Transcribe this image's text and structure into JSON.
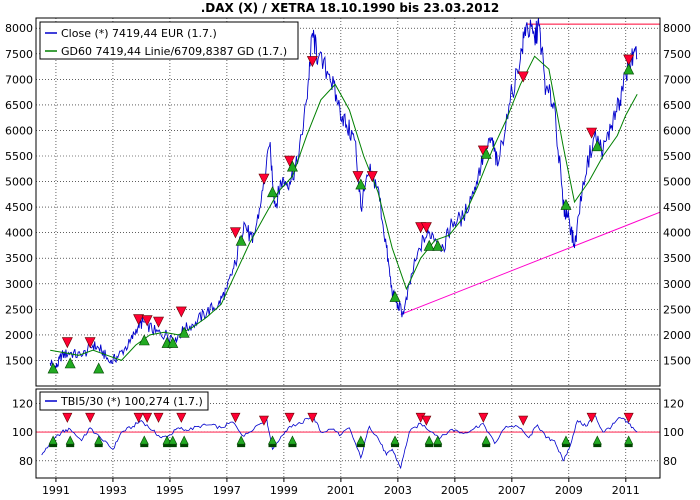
{
  "chart_data": [
    {
      "type": "line",
      "title": ".DAX (X) / XETRA 18.10.1990 bis 23.03.2012",
      "ylim": [
        1000,
        8200
      ],
      "y_ticks": [
        1500,
        2000,
        2500,
        3000,
        3500,
        4000,
        4500,
        5000,
        5500,
        6000,
        6500,
        7000,
        7500,
        8000
      ],
      "y_tick_labels": [
        "1500",
        "2000",
        "2500",
        "3000",
        "3500",
        "4000",
        "4500",
        "5000",
        "5500",
        "6000",
        "6500",
        "7000",
        "7500",
        "8000"
      ],
      "x_ticks": [
        "1991",
        "1993",
        "1995",
        "1997",
        "1999",
        "2001",
        "2003",
        "2005",
        "2007",
        "2009",
        "2011"
      ],
      "grid": true,
      "legend_position": "top-left",
      "series": [
        {
          "name": "Close (*) 7419,44 EUR (1.7.)",
          "color": "#0000cc",
          "points": [
            [
              1990.8,
              1450
            ],
            [
              1991.0,
              1350
            ],
            [
              1991.2,
              1600
            ],
            [
              1991.5,
              1650
            ],
            [
              1991.9,
              1580
            ],
            [
              1992.3,
              1800
            ],
            [
              1992.6,
              1700
            ],
            [
              1992.9,
              1450
            ],
            [
              1993.2,
              1600
            ],
            [
              1993.6,
              1850
            ],
            [
              1993.9,
              2200
            ],
            [
              1994.1,
              2250
            ],
            [
              1994.5,
              2050
            ],
            [
              1994.9,
              2000
            ],
            [
              1995.2,
              1950
            ],
            [
              1995.5,
              2100
            ],
            [
              1995.9,
              2250
            ],
            [
              1996.3,
              2450
            ],
            [
              1996.7,
              2600
            ],
            [
              1997.0,
              2900
            ],
            [
              1997.3,
              3400
            ],
            [
              1997.6,
              4200
            ],
            [
              1997.9,
              3800
            ],
            [
              1998.2,
              4600
            ],
            [
              1998.5,
              5700
            ],
            [
              1998.7,
              4500
            ],
            [
              1998.9,
              5000
            ],
            [
              1999.2,
              5000
            ],
            [
              1999.5,
              5400
            ],
            [
              1999.8,
              6600
            ],
            [
              2000.0,
              7900
            ],
            [
              2000.2,
              7400
            ],
            [
              2000.6,
              7100
            ],
            [
              2000.9,
              6500
            ],
            [
              2001.2,
              6100
            ],
            [
              2001.5,
              5800
            ],
            [
              2001.7,
              4500
            ],
            [
              2002.0,
              5200
            ],
            [
              2002.3,
              4900
            ],
            [
              2002.6,
              3700
            ],
            [
              2002.8,
              2800
            ],
            [
              2003.0,
              2600
            ],
            [
              2003.2,
              2400
            ],
            [
              2003.5,
              3200
            ],
            [
              2003.9,
              3900
            ],
            [
              2004.2,
              4000
            ],
            [
              2004.6,
              3700
            ],
            [
              2004.9,
              4200
            ],
            [
              2005.3,
              4300
            ],
            [
              2005.7,
              4900
            ],
            [
              2006.0,
              5500
            ],
            [
              2006.3,
              5800
            ],
            [
              2006.5,
              5300
            ],
            [
              2006.9,
              6500
            ],
            [
              2007.3,
              7400
            ],
            [
              2007.5,
              8050
            ],
            [
              2007.8,
              7800
            ],
            [
              2007.95,
              8050
            ],
            [
              2008.2,
              6800
            ],
            [
              2008.5,
              6500
            ],
            [
              2008.8,
              4500
            ],
            [
              2009.0,
              4300
            ],
            [
              2009.2,
              3700
            ],
            [
              2009.5,
              5000
            ],
            [
              2009.9,
              5900
            ],
            [
              2010.2,
              5600
            ],
            [
              2010.5,
              6100
            ],
            [
              2010.8,
              6600
            ],
            [
              2011.0,
              7100
            ],
            [
              2011.2,
              7400
            ],
            [
              2011.4,
              7419
            ]
          ]
        },
        {
          "name": "GD60 7419,44 Linie/6709,8387 GD (1.7.)",
          "color": "#008000",
          "points": [
            [
              1990.8,
              1700
            ],
            [
              1991.3,
              1650
            ],
            [
              1991.8,
              1600
            ],
            [
              1992.3,
              1700
            ],
            [
              1992.8,
              1600
            ],
            [
              1993.3,
              1500
            ],
            [
              1993.8,
              1800
            ],
            [
              1994.3,
              2000
            ],
            [
              1994.8,
              2050
            ],
            [
              1995.3,
              2000
            ],
            [
              1995.8,
              2150
            ],
            [
              1996.3,
              2350
            ],
            [
              1996.8,
              2600
            ],
            [
              1997.3,
              3200
            ],
            [
              1997.8,
              3800
            ],
            [
              1998.3,
              4300
            ],
            [
              1998.8,
              4800
            ],
            [
              1999.3,
              5100
            ],
            [
              1999.8,
              5900
            ],
            [
              2000.3,
              6600
            ],
            [
              2000.8,
              6900
            ],
            [
              2001.3,
              6400
            ],
            [
              2001.8,
              5500
            ],
            [
              2002.3,
              4800
            ],
            [
              2002.8,
              3700
            ],
            [
              2003.3,
              2900
            ],
            [
              2003.8,
              3500
            ],
            [
              2004.3,
              3850
            ],
            [
              2004.8,
              3950
            ],
            [
              2005.3,
              4300
            ],
            [
              2005.8,
              4900
            ],
            [
              2006.3,
              5600
            ],
            [
              2006.8,
              6200
            ],
            [
              2007.3,
              6900
            ],
            [
              2007.8,
              7450
            ],
            [
              2008.3,
              7200
            ],
            [
              2008.8,
              5700
            ],
            [
              2009.2,
              4600
            ],
            [
              2009.7,
              5000
            ],
            [
              2010.2,
              5500
            ],
            [
              2010.7,
              5900
            ],
            [
              2011.0,
              6300
            ],
            [
              2011.4,
              6710
            ]
          ]
        }
      ],
      "reference_lines": [
        {
          "color": "#ff00cc",
          "points": [
            [
              2003.1,
              2400
            ],
            [
              2012.2,
              4400
            ]
          ]
        },
        {
          "color": "#ff0033",
          "points": [
            [
              2007.5,
              8080
            ],
            [
              2012.2,
              8080
            ]
          ]
        }
      ],
      "sell_signals": [
        [
          1991.4,
          1850
        ],
        [
          1992.2,
          1850
        ],
        [
          1993.9,
          2300
        ],
        [
          1994.2,
          2280
        ],
        [
          1994.6,
          2250
        ],
        [
          1995.4,
          2450
        ],
        [
          1997.3,
          4000
        ],
        [
          1998.3,
          5050
        ],
        [
          1999.2,
          5400
        ],
        [
          2000.0,
          7350
        ],
        [
          2001.6,
          5100
        ],
        [
          2002.1,
          5100
        ],
        [
          2003.8,
          4100
        ],
        [
          2004.0,
          4100
        ],
        [
          2006.0,
          5600
        ],
        [
          2007.4,
          7050
        ],
        [
          2009.8,
          5950
        ],
        [
          2011.1,
          7380
        ]
      ],
      "buy_signals": [
        [
          1990.9,
          1350
        ],
        [
          1991.5,
          1450
        ],
        [
          1992.5,
          1350
        ],
        [
          1994.1,
          1900
        ],
        [
          1994.9,
          1850
        ],
        [
          1995.1,
          1850
        ],
        [
          1995.5,
          2050
        ],
        [
          1997.5,
          3850
        ],
        [
          1998.6,
          4800
        ],
        [
          1999.3,
          5300
        ],
        [
          2001.7,
          4950
        ],
        [
          2002.9,
          2750
        ],
        [
          2004.1,
          3750
        ],
        [
          2004.4,
          3750
        ],
        [
          2006.1,
          5550
        ],
        [
          2008.9,
          4550
        ],
        [
          2010.0,
          5700
        ],
        [
          2011.1,
          7200
        ]
      ]
    },
    {
      "type": "line",
      "ylim": [
        68,
        130
      ],
      "y_ticks": [
        80,
        100,
        120
      ],
      "y_tick_labels": [
        "80",
        "100",
        "120"
      ],
      "legend_position": "top-left",
      "series": [
        {
          "name": "TBI5/30 (*) 100,274 (1.7.)",
          "color": "#0000cc",
          "points": [
            [
              1990.5,
              84
            ],
            [
              1990.8,
              92
            ],
            [
              1991.2,
              100
            ],
            [
              1991.5,
              102
            ],
            [
              1991.9,
              94
            ],
            [
              1992.2,
              103
            ],
            [
              1992.6,
              95
            ],
            [
              1993.0,
              88
            ],
            [
              1993.3,
              100
            ],
            [
              1993.7,
              104
            ],
            [
              1994.0,
              108
            ],
            [
              1994.4,
              101
            ],
            [
              1994.7,
              96
            ],
            [
              1995.0,
              98
            ],
            [
              1995.3,
              103
            ],
            [
              1995.6,
              101
            ],
            [
              1996.0,
              104
            ],
            [
              1996.4,
              105
            ],
            [
              1996.8,
              103
            ],
            [
              1997.2,
              107
            ],
            [
              1997.6,
              97
            ],
            [
              1998.0,
              104
            ],
            [
              1998.4,
              109
            ],
            [
              1998.6,
              88
            ],
            [
              1998.9,
              97
            ],
            [
              1999.2,
              104
            ],
            [
              1999.6,
              106
            ],
            [
              2000.0,
              112
            ],
            [
              2000.3,
              100
            ],
            [
              2000.7,
              102
            ],
            [
              2001.0,
              98
            ],
            [
              2001.3,
              103
            ],
            [
              2001.7,
              82
            ],
            [
              2002.0,
              104
            ],
            [
              2002.3,
              96
            ],
            [
              2002.6,
              84
            ],
            [
              2002.8,
              88
            ],
            [
              2003.1,
              75
            ],
            [
              2003.4,
              100
            ],
            [
              2003.8,
              106
            ],
            [
              2004.2,
              100
            ],
            [
              2004.5,
              96
            ],
            [
              2004.9,
              102
            ],
            [
              2005.3,
              99
            ],
            [
              2005.7,
              103
            ],
            [
              2006.0,
              106
            ],
            [
              2006.4,
              92
            ],
            [
              2006.8,
              104
            ],
            [
              2007.2,
              104
            ],
            [
              2007.6,
              96
            ],
            [
              2007.9,
              105
            ],
            [
              2008.2,
              96
            ],
            [
              2008.5,
              94
            ],
            [
              2008.8,
              80
            ],
            [
              2009.0,
              88
            ],
            [
              2009.3,
              108
            ],
            [
              2009.6,
              104
            ],
            [
              2009.9,
              112
            ],
            [
              2010.2,
              100
            ],
            [
              2010.5,
              104
            ],
            [
              2010.8,
              110
            ],
            [
              2011.1,
              106
            ],
            [
              2011.4,
              100
            ]
          ]
        }
      ],
      "reference_line_y": 100,
      "sell_signals": [
        [
          1991.4,
          110
        ],
        [
          1992.2,
          110
        ],
        [
          1993.9,
          110
        ],
        [
          1994.2,
          110
        ],
        [
          1994.6,
          110
        ],
        [
          1995.4,
          110
        ],
        [
          1997.3,
          110
        ],
        [
          1998.3,
          108
        ],
        [
          1999.2,
          110
        ],
        [
          2000.0,
          110
        ],
        [
          2003.8,
          110
        ],
        [
          2004.0,
          108
        ],
        [
          2006.0,
          110
        ],
        [
          2007.4,
          108
        ],
        [
          2009.8,
          110
        ],
        [
          2011.1,
          110
        ]
      ],
      "buy_signals": [
        [
          1990.9,
          93
        ],
        [
          1991.5,
          93
        ],
        [
          1992.5,
          93
        ],
        [
          1994.1,
          93
        ],
        [
          1994.9,
          93
        ],
        [
          1995.1,
          93
        ],
        [
          1995.5,
          93
        ],
        [
          1997.5,
          93
        ],
        [
          1998.6,
          93
        ],
        [
          1999.3,
          93
        ],
        [
          2001.7,
          93
        ],
        [
          2002.9,
          93
        ],
        [
          2004.1,
          93
        ],
        [
          2004.4,
          93
        ],
        [
          2006.1,
          93
        ],
        [
          2008.9,
          93
        ],
        [
          2010.0,
          93
        ],
        [
          2011.1,
          93
        ]
      ]
    }
  ]
}
